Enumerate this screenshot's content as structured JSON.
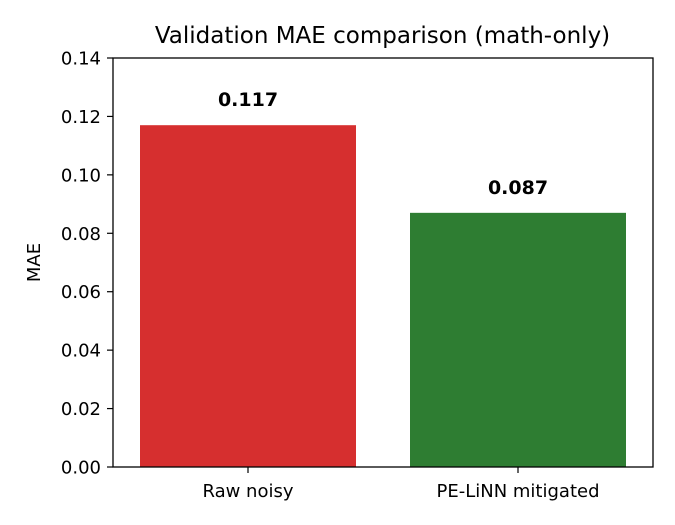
{
  "chart_data": {
    "type": "bar",
    "title": "Validation MAE comparison (math-only)",
    "xlabel": "",
    "ylabel": "MAE",
    "categories": [
      "Raw noisy",
      "PE-LiNN mitigated"
    ],
    "values": [
      0.117,
      0.087
    ],
    "value_labels": [
      "0.117",
      "0.087"
    ],
    "colors": [
      "#d62f2f",
      "#2e7d32"
    ],
    "ylim": [
      0,
      0.14
    ],
    "yticks": [
      "0.00",
      "0.02",
      "0.04",
      "0.06",
      "0.08",
      "0.10",
      "0.12",
      "0.14"
    ],
    "grid": false,
    "legend": "none"
  }
}
